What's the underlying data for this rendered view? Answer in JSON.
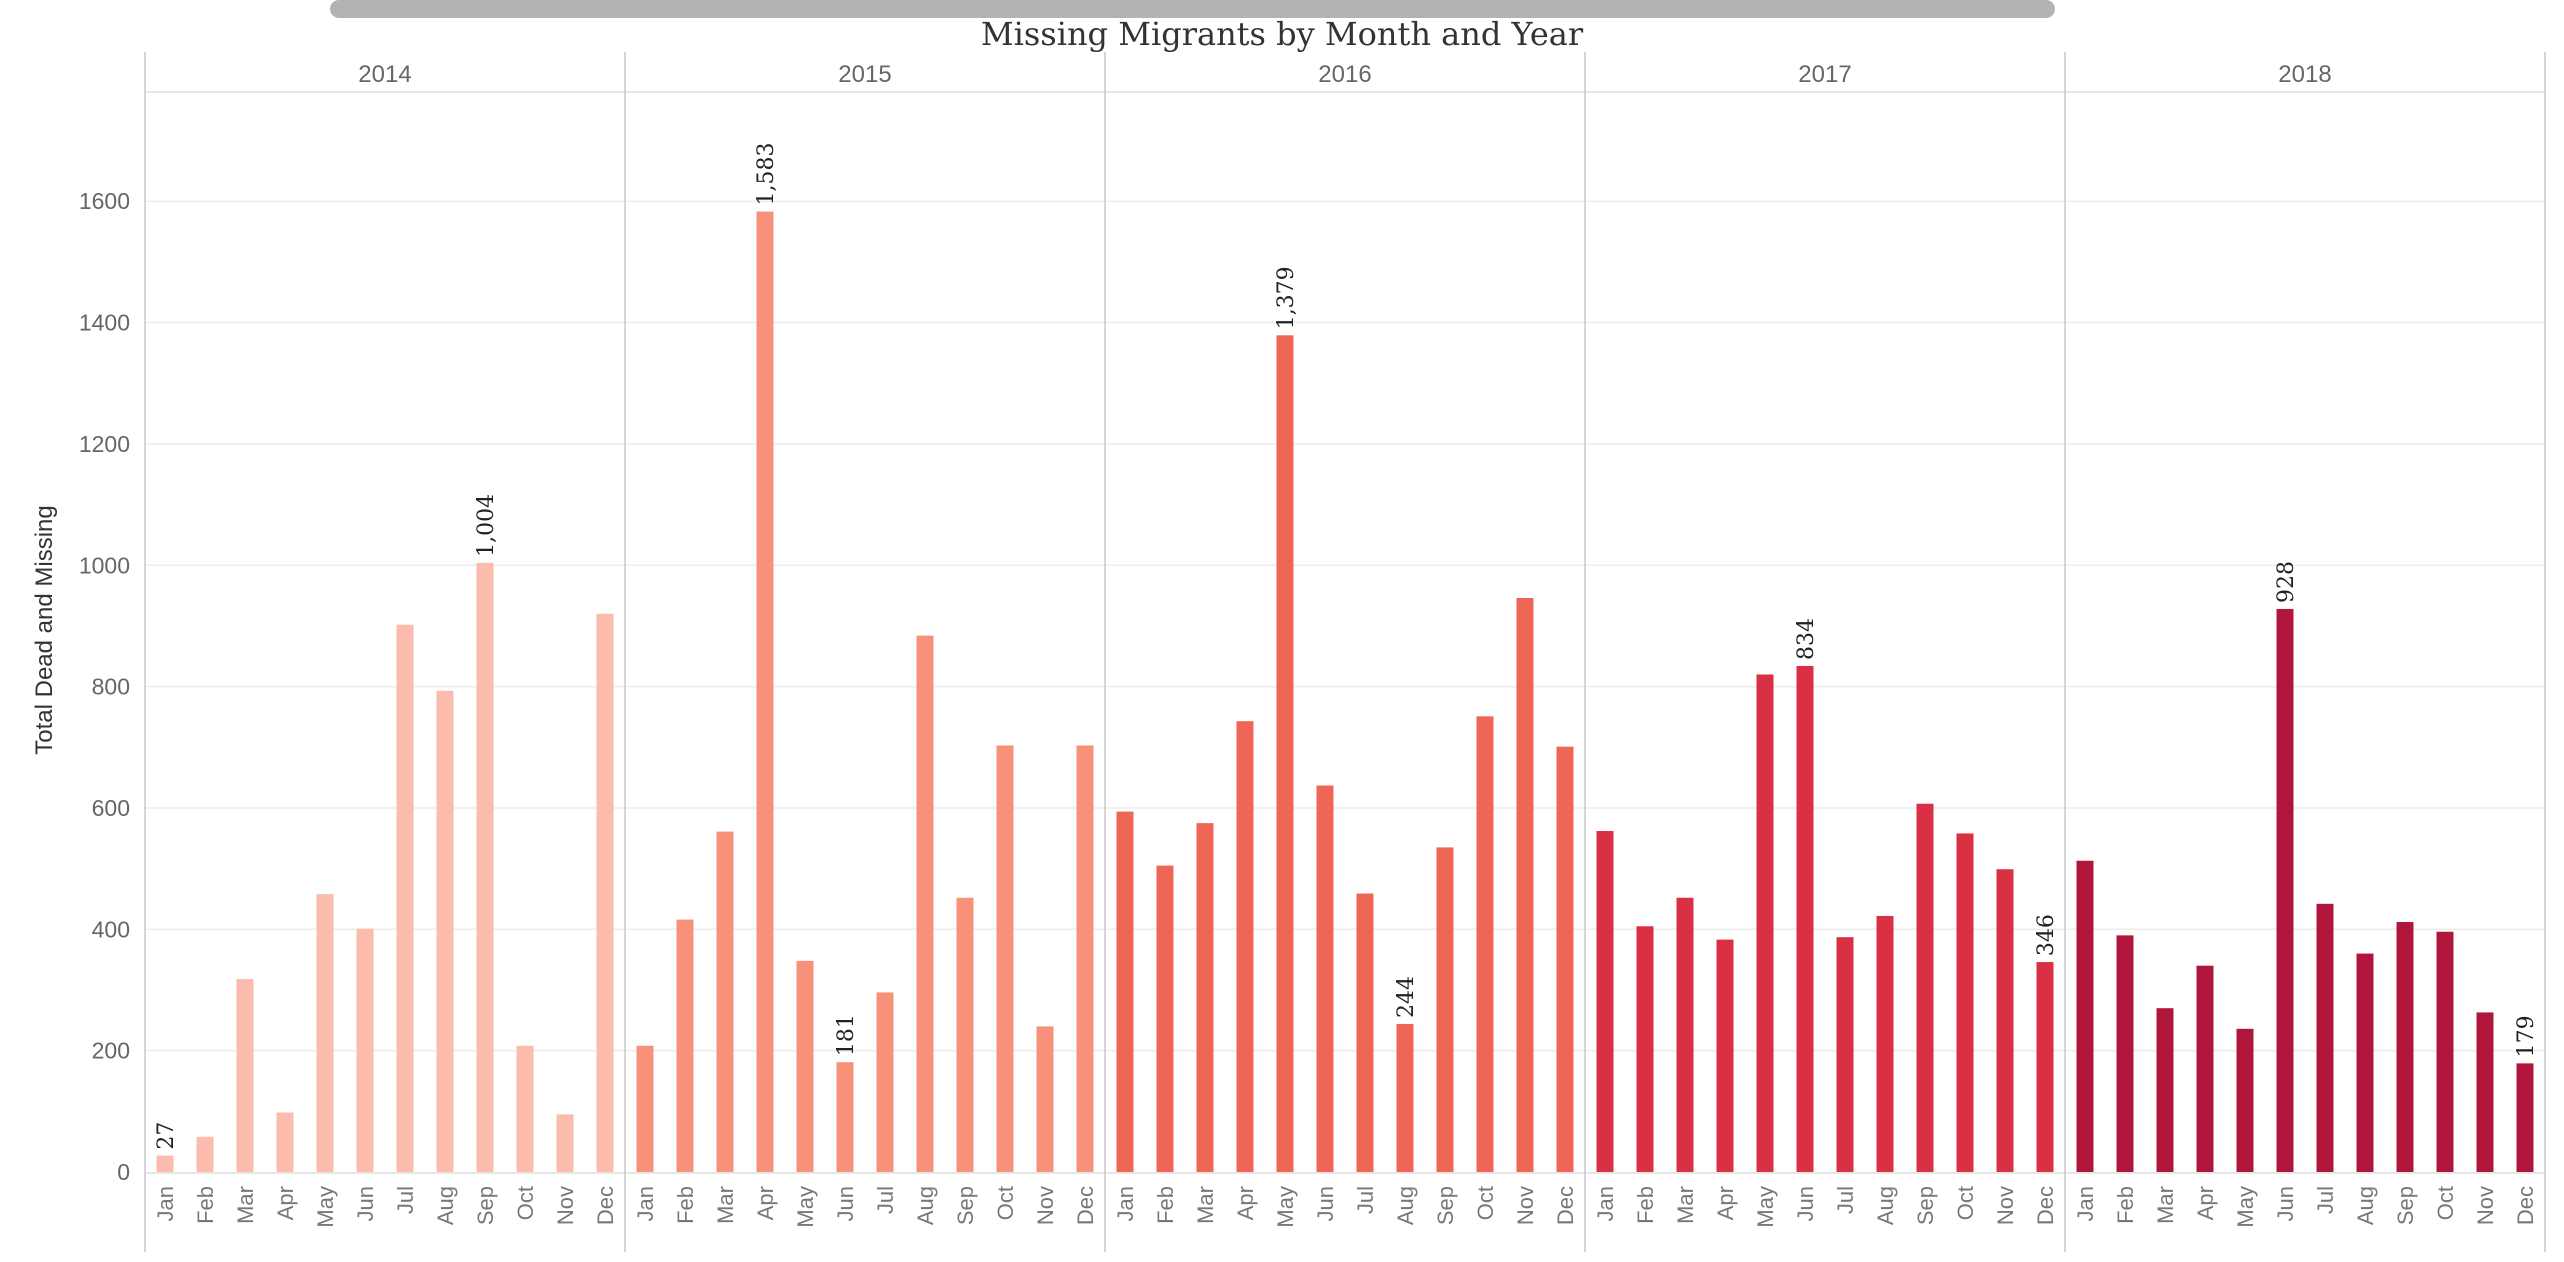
{
  "chart_data": {
    "type": "bar",
    "title": "Missing Migrants by Month and Year",
    "ylabel": "Total Dead and Missing",
    "xlabel": "",
    "ylim": [
      0,
      1780
    ],
    "yticks": [
      0,
      200,
      400,
      600,
      800,
      1000,
      1200,
      1400,
      1600
    ],
    "grid": true,
    "legend": "none",
    "months": [
      "Jan",
      "Feb",
      "Mar",
      "Apr",
      "May",
      "Jun",
      "Jul",
      "Aug",
      "Sep",
      "Oct",
      "Nov",
      "Dec"
    ],
    "colors": {
      "2014": "#fbbcae",
      "2015": "#f8917a",
      "2016": "#ef6556",
      "2017": "#d93044",
      "2018": "#b0163c",
      "scrollbar": "#b3b3b3",
      "grid": "#ececec",
      "divider": "#c8c8c8"
    },
    "years": [
      {
        "year": "2014",
        "values": [
          27,
          58,
          318,
          98,
          458,
          401,
          902,
          793,
          1004,
          208,
          95,
          920
        ],
        "labels": [
          {
            "month": 0,
            "text": "27"
          },
          {
            "month": 8,
            "text": "1,004"
          }
        ]
      },
      {
        "year": "2015",
        "values": [
          208,
          416,
          561,
          1583,
          348,
          181,
          296,
          884,
          452,
          703,
          240,
          703
        ],
        "labels": [
          {
            "month": 3,
            "text": "1,583"
          },
          {
            "month": 5,
            "text": "181"
          }
        ]
      },
      {
        "year": "2016",
        "values": [
          594,
          505,
          575,
          743,
          1379,
          637,
          459,
          244,
          535,
          751,
          946,
          701
        ],
        "labels": [
          {
            "month": 4,
            "text": "1,379"
          },
          {
            "month": 7,
            "text": "244"
          }
        ]
      },
      {
        "year": "2017",
        "values": [
          562,
          405,
          452,
          383,
          820,
          834,
          387,
          422,
          607,
          558,
          499,
          346
        ],
        "labels": [
          {
            "month": 5,
            "text": "834"
          },
          {
            "month": 11,
            "text": "346"
          }
        ]
      },
      {
        "year": "2018",
        "values": [
          513,
          390,
          270,
          340,
          236,
          928,
          442,
          360,
          412,
          396,
          263,
          179
        ],
        "labels": [
          {
            "month": 5,
            "text": "928"
          },
          {
            "month": 11,
            "text": "179"
          }
        ]
      }
    ]
  }
}
